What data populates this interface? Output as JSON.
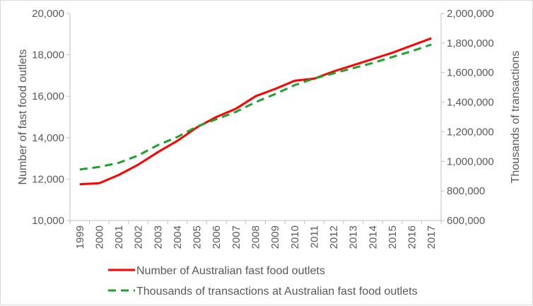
{
  "chart_data": {
    "type": "line",
    "title": "",
    "x": [
      "1999",
      "2000",
      "2001",
      "2002",
      "2003",
      "2004",
      "2005",
      "2006",
      "2007",
      "2008",
      "2009",
      "2010",
      "2011",
      "2012",
      "2013",
      "2014",
      "2015",
      "2016",
      "2017"
    ],
    "xlabel": "",
    "ylabel": "Number of fast food outlets",
    "ylabel_right": "Thousands of transactions",
    "ylim": [
      10000,
      20000
    ],
    "ylim_right": [
      600000,
      2000000
    ],
    "yticks": [
      "10,000",
      "12,000",
      "14,000",
      "16,000",
      "18,000",
      "20,000"
    ],
    "yticks_right": [
      "600,000",
      "800,000",
      "1,000,000",
      "1,200,000",
      "1,400,000",
      "1,600,000",
      "1,800,000",
      "2,000,000"
    ],
    "grid": false,
    "legend_position": "bottom",
    "series": [
      {
        "name": "Number of Australian fast food outlets",
        "axis": "left",
        "style": "solid",
        "color": "#ff0000",
        "values": [
          11750,
          11800,
          12200,
          12700,
          13300,
          13850,
          14500,
          15000,
          15400,
          16000,
          16350,
          16750,
          16850,
          17200,
          17500,
          17800,
          18100,
          18450,
          18800
        ]
      },
      {
        "name": "Thousands of transactions at Australian fast food outlets",
        "axis": "right",
        "style": "dashed",
        "color": "#1fa12e",
        "values": [
          945000,
          962000,
          990000,
          1040000,
          1110000,
          1165000,
          1235000,
          1285000,
          1335000,
          1400000,
          1455000,
          1515000,
          1560000,
          1595000,
          1630000,
          1665000,
          1705000,
          1745000,
          1790000
        ]
      }
    ]
  }
}
